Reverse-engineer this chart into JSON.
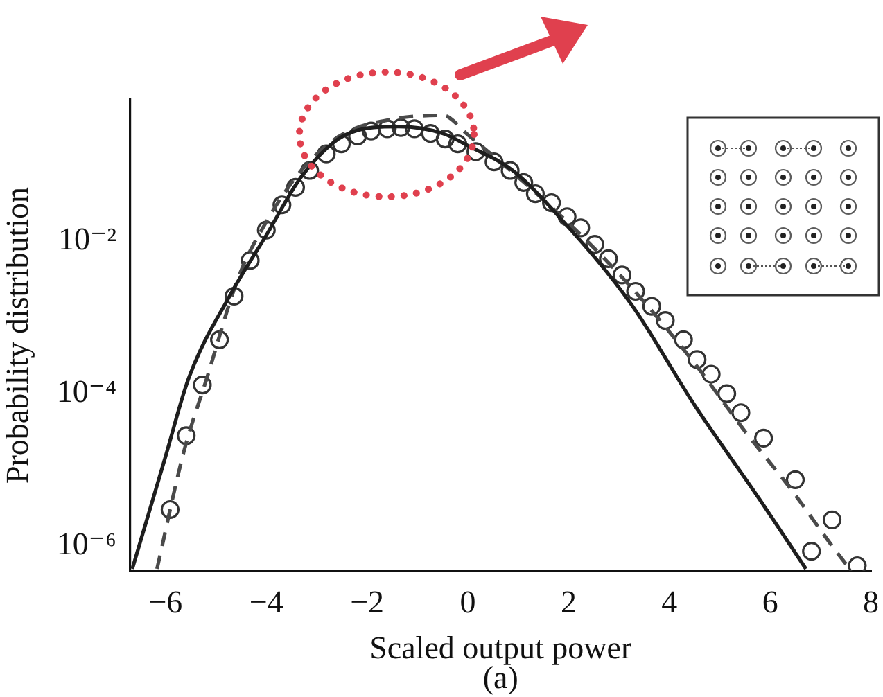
{
  "chart_data": {
    "type": "line",
    "xlabel": "Scaled output power",
    "ylabel": "Probability distribution",
    "annotations": [
      "(a)"
    ],
    "xlim": [
      -6.7,
      8
    ],
    "xticks": [
      -6,
      -4,
      -2,
      0,
      2,
      4,
      6,
      8
    ],
    "ylim": [
      4.7e-07,
      0.72
    ],
    "yticks": [
      {
        "value": 1e-06,
        "label": "10⁻⁶"
      },
      {
        "value": 0.0001,
        "label": "10⁻⁴"
      },
      {
        "value": 0.01,
        "label": "10⁻²"
      }
    ],
    "log": "y",
    "grid": false,
    "legend": false,
    "series": [
      {
        "color": "#1e1e1e",
        "marker": "none",
        "line_style": "solid",
        "x": [
          -6.66,
          -6.0,
          -5.54,
          -4.73,
          -4.0,
          -3.28,
          -2.37,
          -1.37,
          -0.5,
          0,
          0.89,
          1.9,
          3.24,
          4.51,
          5.78,
          6.71
        ],
        "values": [
          5e-07,
          1.5e-05,
          0.00016,
          0.0019,
          0.012,
          0.074,
          0.26,
          0.32,
          0.26,
          0.18,
          0.085,
          0.018,
          0.0015,
          6.9e-05,
          4.2e-06,
          5e-07
        ]
      },
      {
        "color": "#4a4a4a",
        "marker": "none",
        "line_style": "dashed",
        "x": [
          -6.17,
          -5.64,
          -5.18,
          -4.55,
          -4.0,
          -3.28,
          -2.5,
          -1.5,
          -0.5,
          0,
          1.9,
          3.24,
          4.5,
          5.5,
          6.41,
          7.23,
          7.58
        ],
        "values": [
          5e-07,
          1.7e-05,
          0.00016,
          0.0034,
          0.018,
          0.089,
          0.25,
          0.4,
          0.45,
          0.25,
          0.02,
          0.0025,
          0.00025,
          3.2e-05,
          5.6e-06,
          1e-06,
          5e-07
        ]
      },
      {
        "type": "scatter",
        "color": "#333333",
        "marker": "circle",
        "x": [
          -5.91,
          -5.59,
          -5.27,
          -4.93,
          -4.64,
          -4.32,
          -4.0,
          -3.69,
          -3.42,
          -3.14,
          -2.81,
          -2.51,
          -2.19,
          -1.92,
          -1.6,
          -1.33,
          -1.06,
          -0.74,
          -0.45,
          -0.2,
          0.16,
          0.52,
          0.84,
          1.11,
          1.34,
          1.66,
          1.97,
          2.24,
          2.52,
          2.79,
          3.06,
          3.33,
          3.65,
          3.92,
          4.28,
          4.55,
          4.83,
          5.14,
          5.42,
          5.87,
          6.5,
          6.82,
          7.23,
          7.73
        ],
        "values": [
          3e-06,
          2.8e-05,
          0.00013,
          0.00051,
          0.0019,
          0.0056,
          0.014,
          0.03,
          0.051,
          0.085,
          0.14,
          0.19,
          0.24,
          0.28,
          0.3,
          0.31,
          0.3,
          0.26,
          0.22,
          0.19,
          0.15,
          0.11,
          0.085,
          0.059,
          0.042,
          0.032,
          0.021,
          0.015,
          0.0091,
          0.0059,
          0.0036,
          0.0022,
          0.0014,
          0.00091,
          0.00051,
          0.00028,
          0.00018,
          0.0001,
          5.6e-05,
          2.6e-05,
          7.4e-06,
          8.5e-07,
          2.2e-06,
          5.5e-07
        ]
      }
    ]
  }
}
